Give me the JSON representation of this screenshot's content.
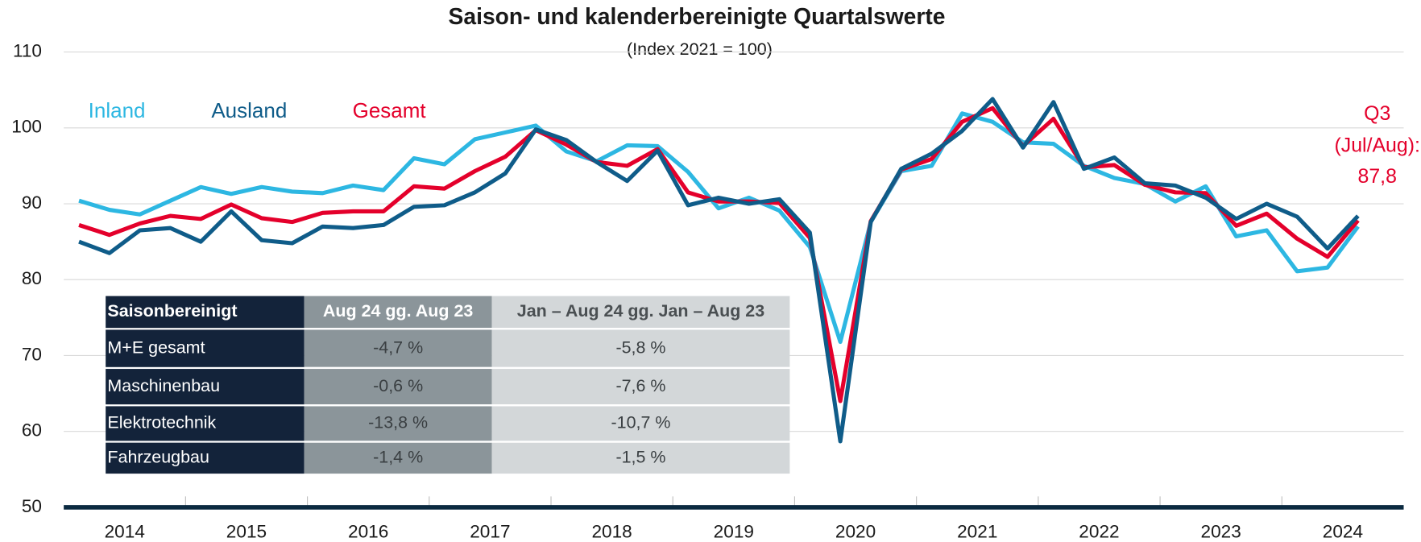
{
  "chart_data": {
    "type": "line",
    "title": "Saison- und kalenderbereinigte Quartalswerte",
    "subtitle": "(Index 2021 = 100)",
    "years": [
      "2014",
      "2015",
      "2016",
      "2017",
      "2018",
      "2019",
      "2020",
      "2021",
      "2022",
      "2023",
      "2024"
    ],
    "ylim": [
      50,
      110
    ],
    "yticks": [
      50,
      60,
      70,
      80,
      90,
      100,
      110
    ],
    "grid": true,
    "series": [
      {
        "name": "Inland",
        "color": "#2db7e2",
        "values": [
          90.4,
          89.2,
          88.6,
          90.4,
          92.2,
          91.3,
          92.2,
          91.6,
          91.4,
          92.4,
          91.8,
          96.0,
          95.2,
          98.5,
          99.4,
          100.3,
          96.9,
          95.6,
          97.7,
          97.6,
          94.2,
          89.4,
          90.8,
          89.1,
          84.3,
          71.8,
          87.6,
          94.3,
          95.0,
          101.9,
          100.8,
          98.1,
          97.9,
          95.0,
          93.4,
          92.6,
          90.3,
          92.3,
          85.7,
          86.5,
          81.1,
          81.6,
          87.0
        ]
      },
      {
        "name": "Ausland",
        "color": "#0f5c89",
        "values": [
          85.0,
          83.5,
          86.5,
          86.8,
          85.0,
          89.0,
          85.2,
          84.8,
          87.0,
          86.8,
          87.2,
          89.6,
          89.8,
          91.5,
          94.0,
          99.8,
          98.4,
          95.5,
          93.0,
          97.0,
          89.8,
          90.8,
          90.0,
          90.6,
          86.2,
          58.7,
          87.6,
          94.6,
          96.6,
          99.6,
          103.8,
          97.4,
          103.4,
          94.6,
          96.1,
          92.7,
          92.4,
          90.8,
          88.0,
          90.0,
          88.3,
          84.1,
          88.4
        ]
      },
      {
        "name": "Gesamt",
        "color": "#e4002b",
        "values": [
          87.2,
          85.9,
          87.4,
          88.4,
          88.0,
          89.9,
          88.1,
          87.6,
          88.8,
          89.0,
          89.0,
          92.3,
          92.0,
          94.3,
          96.2,
          99.7,
          97.8,
          95.5,
          95.0,
          97.2,
          91.5,
          90.3,
          90.3,
          90.1,
          85.5,
          64.0,
          87.7,
          94.5,
          95.9,
          100.8,
          102.6,
          97.6,
          101.2,
          94.8,
          95.1,
          92.5,
          91.5,
          91.4,
          87.1,
          88.7,
          85.4,
          83.0,
          87.8
        ]
      }
    ],
    "annotation": [
      "Q3",
      "(Jul/Aug):",
      "87,8"
    ]
  },
  "table": {
    "header": [
      "Saisonbereinigt",
      "Aug 24 gg. Aug 23",
      "Jan – Aug 24 gg. Jan – Aug 23"
    ],
    "rows": [
      [
        "M+E gesamt",
        "-4,7 %",
        "-5,8 %"
      ],
      [
        "Maschinenbau",
        "-0,6 %",
        "-7,6 %"
      ],
      [
        "Elektrotechnik",
        "-13,8 %",
        "-10,7 %"
      ],
      [
        "Fahrzeugbau",
        "-1,4 %",
        "-1,5 %"
      ]
    ]
  }
}
